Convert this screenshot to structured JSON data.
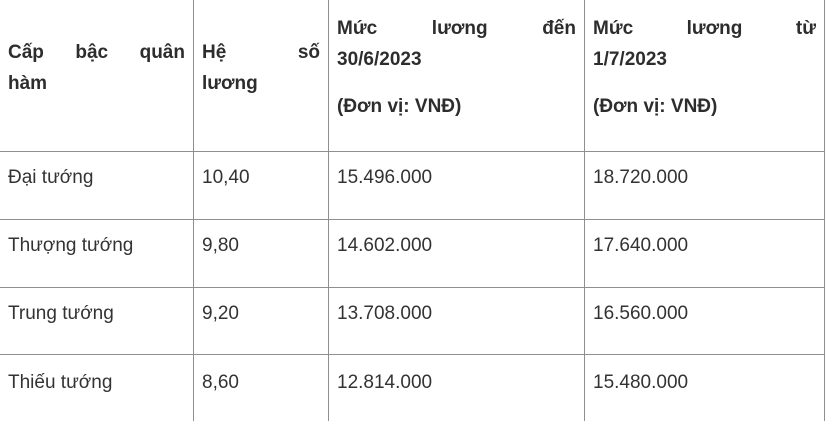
{
  "colors": {
    "border": "#8f8f8f",
    "header_text": "#2d2d2d",
    "body_text": "#333333",
    "background": "#ffffff"
  },
  "salary_table": {
    "header": {
      "rank": {
        "line1": "Cấp bậc quân",
        "line2": "hàm"
      },
      "coefficient": {
        "line1": "Hệ số",
        "line2": "lương"
      },
      "salary_before": {
        "line1": "Mức lương đến",
        "line2": "30/6/2023",
        "unit": "(Đơn vị: VNĐ)"
      },
      "salary_after": {
        "line1": "Mức lương từ",
        "line2": "1/7/2023",
        "unit": "(Đơn vị: VNĐ)"
      }
    },
    "rows": [
      {
        "rank": "Đại tướng",
        "coefficient": "10,40",
        "salary_before": "15.496.000",
        "salary_after": "18.720.000"
      },
      {
        "rank": "Thượng tướng",
        "coefficient": "9,80",
        "salary_before": "14.602.000",
        "salary_after": "17.640.000"
      },
      {
        "rank": "Trung tướng",
        "coefficient": "9,20",
        "salary_before": "13.708.000",
        "salary_after": "16.560.000"
      },
      {
        "rank": "Thiếu tướng",
        "coefficient": "8,60",
        "salary_before": "12.814.000",
        "salary_after": "15.480.000"
      }
    ]
  }
}
